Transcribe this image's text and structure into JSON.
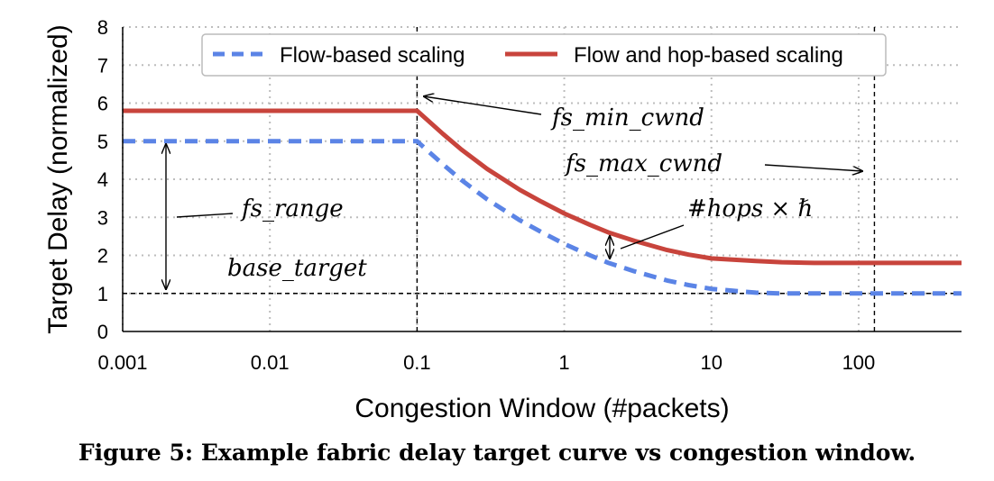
{
  "caption": "Figure 5: Example fabric delay target curve vs congestion window.",
  "chart_data": {
    "type": "line",
    "xscale": "log",
    "xlim": [
      0.001,
      500
    ],
    "ylim": [
      0,
      8
    ],
    "xlabel": "Congestion Window (#packets)",
    "ylabel": "Target Delay (normalized)",
    "xticks": [
      "0.001",
      "0.01",
      "0.1",
      "1",
      "10",
      "100"
    ],
    "xtick_values": [
      0.001,
      0.01,
      0.1,
      1,
      10,
      100
    ],
    "yticks": [
      "0",
      "1",
      "2",
      "3",
      "4",
      "5",
      "6",
      "7",
      "8"
    ],
    "grid": true,
    "legend": "top",
    "series": [
      {
        "name": "Flow-based scaling",
        "color": "#5b84e6",
        "style": "dashed",
        "x": [
          0.001,
          0.1,
          0.15,
          0.2,
          0.3,
          0.5,
          0.7,
          1,
          1.5,
          2,
          3,
          5,
          7,
          10,
          20,
          30,
          50,
          80,
          128,
          500
        ],
        "y": [
          5.0,
          5.0,
          4.39,
          3.98,
          3.47,
          2.92,
          2.61,
          2.3,
          2.0,
          1.8,
          1.58,
          1.34,
          1.22,
          1.12,
          1.02,
          1.0,
          1.0,
          1.0,
          1.0,
          1.0
        ]
      },
      {
        "name": "Flow and hop-based scaling",
        "color": "#c8443c",
        "style": "solid",
        "x": [
          0.001,
          0.1,
          0.15,
          0.2,
          0.3,
          0.5,
          0.7,
          1,
          1.5,
          2,
          3,
          5,
          7,
          10,
          20,
          30,
          50,
          80,
          128,
          500
        ],
        "y": [
          5.8,
          5.8,
          5.19,
          4.78,
          4.27,
          3.72,
          3.41,
          3.1,
          2.8,
          2.6,
          2.38,
          2.14,
          2.02,
          1.92,
          1.85,
          1.82,
          1.8,
          1.8,
          1.8,
          1.8
        ]
      }
    ],
    "reference_lines": [
      {
        "axis": "x",
        "value": 0.1,
        "style": "dashed",
        "color": "#000000"
      },
      {
        "axis": "x",
        "value": 128,
        "style": "dashed",
        "color": "#000000"
      },
      {
        "axis": "y",
        "value": 1,
        "style": "dashed",
        "color": "#000000"
      }
    ],
    "annotations": [
      {
        "text": "fs_min_cwnd",
        "arrow_to": [
          0.1,
          6.1
        ]
      },
      {
        "text": "fs_max_cwnd",
        "arrow_to": [
          110,
          4.2
        ]
      },
      {
        "text": "fs_range",
        "double_arrow": [
          [
            0.002,
            1.0
          ],
          [
            0.002,
            5.0
          ]
        ]
      },
      {
        "text": "base_target"
      },
      {
        "text": "#hops × ℏ",
        "double_arrow": [
          [
            2,
            1.8
          ],
          [
            2,
            2.6
          ]
        ]
      }
    ]
  }
}
